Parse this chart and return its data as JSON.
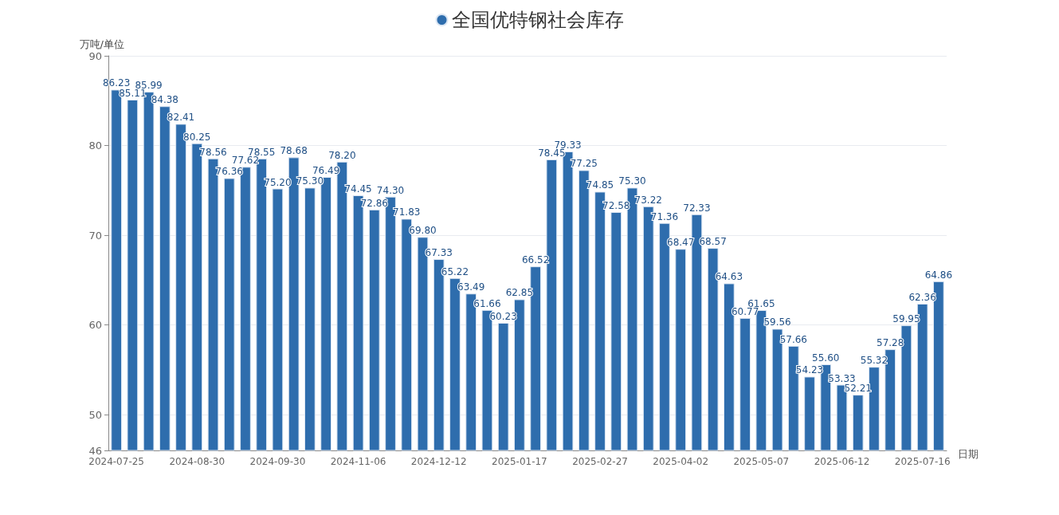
{
  "chart_data": {
    "type": "bar",
    "xlabel": "日期",
    "ylabel": "万吨/单位",
    "categories": [
      "2024-07-25",
      null,
      null,
      null,
      null,
      "2024-08-30",
      null,
      null,
      null,
      null,
      "2024-09-30",
      null,
      null,
      null,
      null,
      "2024-11-06",
      null,
      null,
      null,
      null,
      "2024-12-12",
      null,
      null,
      null,
      null,
      "2025-01-17",
      null,
      null,
      null,
      null,
      "2025-02-27",
      null,
      null,
      null,
      null,
      "2025-04-02",
      null,
      null,
      null,
      null,
      "2025-05-07",
      null,
      null,
      null,
      null,
      "2025-06-12",
      null,
      null,
      null,
      null,
      "2025-07-16",
      null
    ],
    "series": [
      {
        "name": "全国优特钢社会库存",
        "color": "#2e6dad",
        "values": [
          86.23,
          85.11,
          85.99,
          84.38,
          82.41,
          80.25,
          78.56,
          76.36,
          77.62,
          78.55,
          75.2,
          78.68,
          75.3,
          76.49,
          78.2,
          74.45,
          72.86,
          74.3,
          71.83,
          69.8,
          67.33,
          65.22,
          63.49,
          61.66,
          60.23,
          62.85,
          66.52,
          78.45,
          79.33,
          77.25,
          74.85,
          72.58,
          75.3,
          73.22,
          71.36,
          68.47,
          72.33,
          68.57,
          64.63,
          60.77,
          61.65,
          59.56,
          57.66,
          54.23,
          55.6,
          53.33,
          52.21,
          55.32,
          57.28,
          59.95,
          62.36,
          64.86
        ]
      }
    ],
    "value_labels": [
      "86.23",
      "85.11",
      "85.99",
      "84.38",
      "82.41",
      "80.25",
      "78.56",
      "76.36",
      "77.62",
      "78.55",
      "75.20",
      "78.68",
      "75.30",
      "76.49",
      "78.20",
      "74.45",
      "72.86",
      "74.30",
      "71.83",
      "69.80",
      "67.33",
      "65.22",
      "63.49",
      "61.66",
      "60.23",
      "62.85",
      "66.52",
      "78.45",
      "79.33",
      "77.25",
      "74.85",
      "72.58",
      "75.30",
      "73.22",
      "71.36",
      "68.47",
      "72.33",
      "68.57",
      "64.63",
      "60.77",
      "61.65",
      "59.56",
      "57.66",
      "54.23",
      "55.60",
      "53.33",
      "52.21",
      "55.32",
      "57.28",
      "59.95",
      "62.36",
      "64.86"
    ],
    "ylim": [
      46,
      90
    ],
    "yticks": [
      46,
      50,
      60,
      70,
      80,
      90
    ],
    "grid": "y",
    "legend": "top"
  }
}
